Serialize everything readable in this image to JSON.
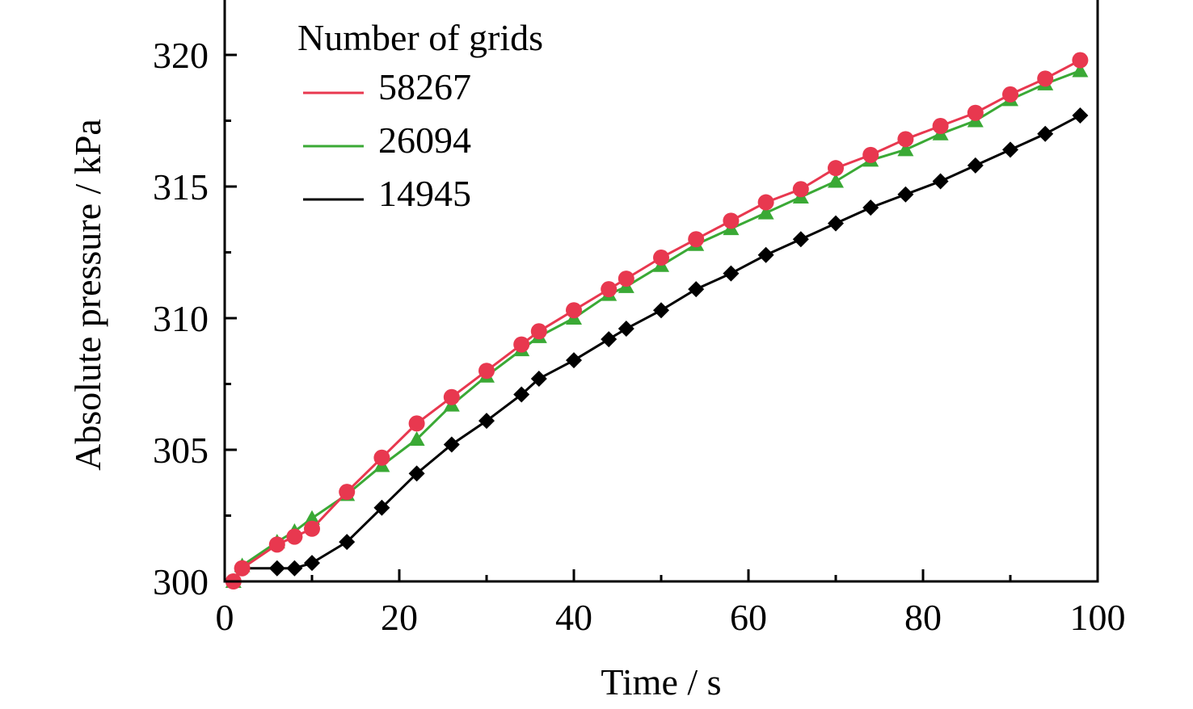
{
  "chart_data": {
    "type": "line",
    "title": "",
    "xlabel": "Time / s",
    "ylabel": "Absolute pressure / kPa",
    "xlim": [
      0,
      100
    ],
    "ylim": [
      300,
      322
    ],
    "xticks": [
      0,
      20,
      40,
      60,
      80,
      100
    ],
    "yticks": [
      300,
      305,
      310,
      315,
      320
    ],
    "xtick_labels": [
      "0",
      "20",
      "40",
      "60",
      "80",
      "100"
    ],
    "ytick_labels": [
      "300",
      "305",
      "310",
      "315",
      "320"
    ],
    "grid": false,
    "legend_title": "Number of grids",
    "legend_placement": "top-left",
    "series": [
      {
        "name": "58267",
        "color": "#e8384f",
        "marker": "circle",
        "x": [
          1,
          2,
          6,
          8,
          10,
          14,
          18,
          22,
          26,
          30,
          34,
          36,
          40,
          44,
          46,
          50,
          54,
          58,
          62,
          66,
          70,
          74,
          78,
          82,
          86,
          90,
          94,
          98
        ],
        "y": [
          300.0,
          300.5,
          301.4,
          301.7,
          302.0,
          303.4,
          304.7,
          306.0,
          307.0,
          308.0,
          309.0,
          309.5,
          310.3,
          311.1,
          311.5,
          312.3,
          313.0,
          313.7,
          314.4,
          314.9,
          315.7,
          316.2,
          316.8,
          317.3,
          317.8,
          318.5,
          319.1,
          319.8
        ]
      },
      {
        "name": "26094",
        "color": "#3aa935",
        "marker": "triangle",
        "x": [
          1,
          2,
          6,
          8,
          10,
          14,
          18,
          22,
          26,
          30,
          34,
          36,
          40,
          44,
          46,
          50,
          54,
          58,
          62,
          66,
          70,
          74,
          78,
          82,
          86,
          90,
          94,
          98
        ],
        "y": [
          300.0,
          300.6,
          301.5,
          301.9,
          302.4,
          303.3,
          304.4,
          305.4,
          306.7,
          307.8,
          308.8,
          309.3,
          310.0,
          310.9,
          311.2,
          312.0,
          312.8,
          313.4,
          314.0,
          314.6,
          315.2,
          316.0,
          316.4,
          317.0,
          317.5,
          318.3,
          318.9,
          319.4
        ]
      },
      {
        "name": "14945",
        "color": "#000000",
        "marker": "diamond",
        "x": [
          2,
          6,
          8,
          10,
          14,
          18,
          22,
          26,
          30,
          34,
          36,
          40,
          44,
          46,
          50,
          54,
          58,
          62,
          66,
          70,
          74,
          78,
          82,
          86,
          90,
          94,
          98
        ],
        "y": [
          300.5,
          300.5,
          300.5,
          300.7,
          301.5,
          302.8,
          304.1,
          305.2,
          306.1,
          307.1,
          307.7,
          308.4,
          309.2,
          309.6,
          310.3,
          311.1,
          311.7,
          312.4,
          313.0,
          313.6,
          314.2,
          314.7,
          315.2,
          315.8,
          316.4,
          317.0,
          317.7
        ]
      }
    ]
  }
}
